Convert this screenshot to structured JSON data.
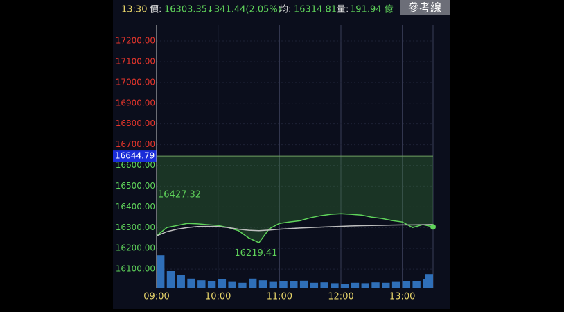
{
  "header": {
    "time": "13:30",
    "price_label": "價:",
    "price": "16303.35",
    "change": "↓341.44(2.05%)",
    "avg_label": "均:",
    "avg": "16314.81",
    "volume_label": "量:",
    "volume": "191.94 億",
    "button": "參考線"
  },
  "chart_data": {
    "type": "line",
    "x": [
      "09:00",
      "09:10",
      "09:20",
      "09:30",
      "09:40",
      "09:50",
      "10:00",
      "10:10",
      "10:20",
      "10:30",
      "10:40",
      "10:50",
      "11:00",
      "11:10",
      "11:20",
      "11:30",
      "11:40",
      "11:50",
      "12:00",
      "12:10",
      "12:20",
      "12:30",
      "12:40",
      "12:50",
      "13:00",
      "13:10",
      "13:20",
      "13:30"
    ],
    "xlim": [
      "09:00",
      "13:30"
    ],
    "xticks": [
      "09:00",
      "10:00",
      "11:00",
      "12:00",
      "13:00"
    ],
    "series": [
      {
        "name": "price",
        "color": "#5fd35a",
        "values": [
          16260,
          16300,
          16310,
          16320,
          16318,
          16314,
          16310,
          16300,
          16285,
          16250,
          16227,
          16294,
          16320,
          16327,
          16333,
          16347,
          16357,
          16364,
          16367,
          16364,
          16360,
          16350,
          16344,
          16334,
          16327,
          16300,
          16314,
          16303.35
        ]
      },
      {
        "name": "average",
        "color": "#bfbfbf",
        "values": [
          16260,
          16280,
          16292,
          16300,
          16305,
          16306,
          16305,
          16300,
          16292,
          16287,
          16285,
          16288,
          16292,
          16295,
          16298,
          16300,
          16302,
          16304,
          16306,
          16308,
          16309,
          16310,
          16311,
          16312,
          16313,
          16313,
          16314,
          16314.81
        ]
      }
    ],
    "volume": [
      78,
      40,
      30,
      22,
      18,
      16,
      20,
      14,
      12,
      22,
      18,
      14,
      16,
      15,
      17,
      12,
      13,
      11,
      10,
      12,
      11,
      13,
      12,
      14,
      16,
      15,
      20,
      33
    ],
    "volume_ylim": [
      0,
      100
    ],
    "reference": 16644.79,
    "annotations": [
      {
        "text": "16427.32",
        "x": "09:00",
        "y": 16427.32
      },
      {
        "text": "16219.41",
        "x": "10:35",
        "y": 16219.41
      }
    ],
    "ylim": [
      16010,
      17277
    ],
    "yticks": [
      {
        "value": 16100,
        "label": "16100.00"
      },
      {
        "value": 16200,
        "label": "16200.00"
      },
      {
        "value": 16300,
        "label": "16300.00"
      },
      {
        "value": 16400,
        "label": "16400.00"
      },
      {
        "value": 16500,
        "label": "16500.00"
      },
      {
        "value": 16600,
        "label": "16600.00"
      },
      {
        "value": 16700,
        "label": "16700.00"
      },
      {
        "value": 16800,
        "label": "16800.00"
      },
      {
        "value": 16900,
        "label": "16900.00"
      },
      {
        "value": 17000,
        "label": "17000.00"
      },
      {
        "value": 17100,
        "label": "17100.00"
      },
      {
        "value": 17200,
        "label": "17200.00"
      }
    ],
    "up_color": "#e8362c",
    "down_color": "#5fd35a",
    "ref_color": "#1a2dd8",
    "volume_color": "#2f6fb8"
  }
}
